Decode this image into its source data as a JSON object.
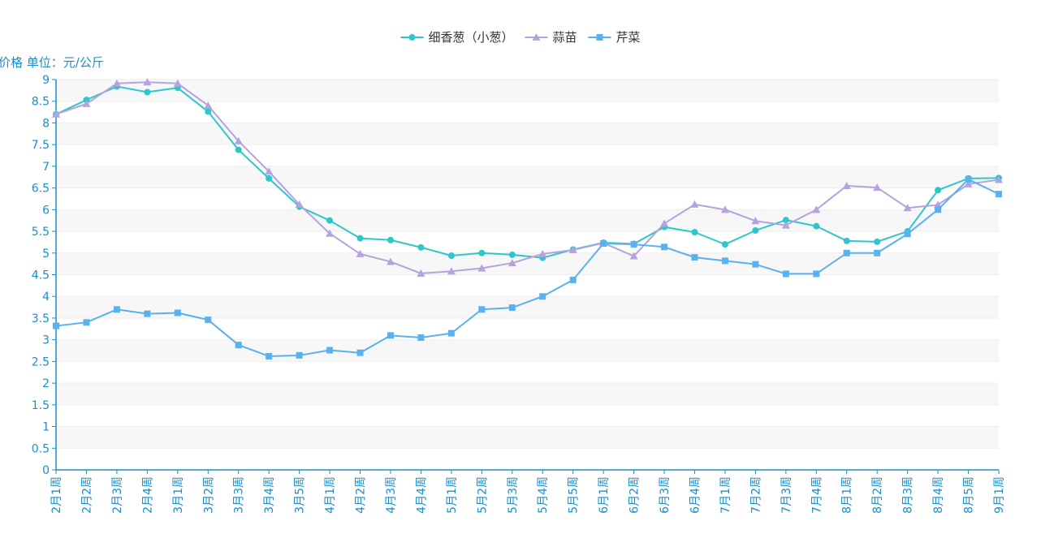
{
  "chart_data": {
    "type": "line",
    "ylabel": "价格 单位：元/公斤",
    "ylim": [
      0,
      9
    ],
    "y_ticks": [
      "0",
      "0.5",
      "1",
      "1.5",
      "2",
      "2.5",
      "3",
      "3.5",
      "4",
      "4.5",
      "5",
      "5.5",
      "6",
      "6.5",
      "7",
      "7.5",
      "8",
      "8.5",
      "9"
    ],
    "categories": [
      "2月1周",
      "2月2周",
      "2月3周",
      "2月4周",
      "3月1周",
      "3月2周",
      "3月3周",
      "3月4周",
      "3月5周",
      "4月1周",
      "4月2周",
      "4月3周",
      "4月4周",
      "5月1周",
      "5月2周",
      "5月3周",
      "5月4周",
      "5月5周",
      "6月1周",
      "6月2周",
      "6月3周",
      "6月4周",
      "7月1周",
      "7月2周",
      "7月3周",
      "7月4周",
      "8月1周",
      "8月2周",
      "8月3周",
      "8月4周",
      "8月5周",
      "9月1周"
    ],
    "grid": true,
    "legend_position": "top-center",
    "series": [
      {
        "name": "细香葱（小葱）",
        "color": "#2ec7c9",
        "marker": "circle",
        "values": [
          8.2,
          8.53,
          8.84,
          8.71,
          8.81,
          8.26,
          7.38,
          6.72,
          6.07,
          5.75,
          5.34,
          5.3,
          5.13,
          4.94,
          5.0,
          4.96,
          4.89,
          5.08,
          5.24,
          5.21,
          5.6,
          5.48,
          5.2,
          5.52,
          5.76,
          5.62,
          5.28,
          5.26,
          5.5,
          6.45,
          6.72,
          6.73
        ]
      },
      {
        "name": "蒜苗",
        "color": "#b6a2de",
        "marker": "triangle",
        "values": [
          8.2,
          8.44,
          8.91,
          8.94,
          8.91,
          8.4,
          7.58,
          6.88,
          6.12,
          5.45,
          4.98,
          4.8,
          4.53,
          4.58,
          4.65,
          4.77,
          4.98,
          5.07,
          5.23,
          4.93,
          5.68,
          6.12,
          6.0,
          5.74,
          5.64,
          6.0,
          6.55,
          6.51,
          6.04,
          6.11,
          6.59,
          6.69
        ]
      },
      {
        "name": "芹菜",
        "color": "#5ab1ef",
        "marker": "square",
        "values": [
          3.32,
          3.4,
          3.7,
          3.6,
          3.62,
          3.46,
          2.88,
          2.62,
          2.64,
          2.76,
          2.7,
          3.1,
          3.05,
          3.15,
          3.7,
          3.74,
          4.0,
          4.38,
          5.22,
          5.2,
          5.14,
          4.9,
          4.82,
          4.74,
          4.52,
          4.52,
          5.0,
          5.0,
          5.44,
          6.0,
          6.7,
          6.36
        ]
      }
    ]
  }
}
